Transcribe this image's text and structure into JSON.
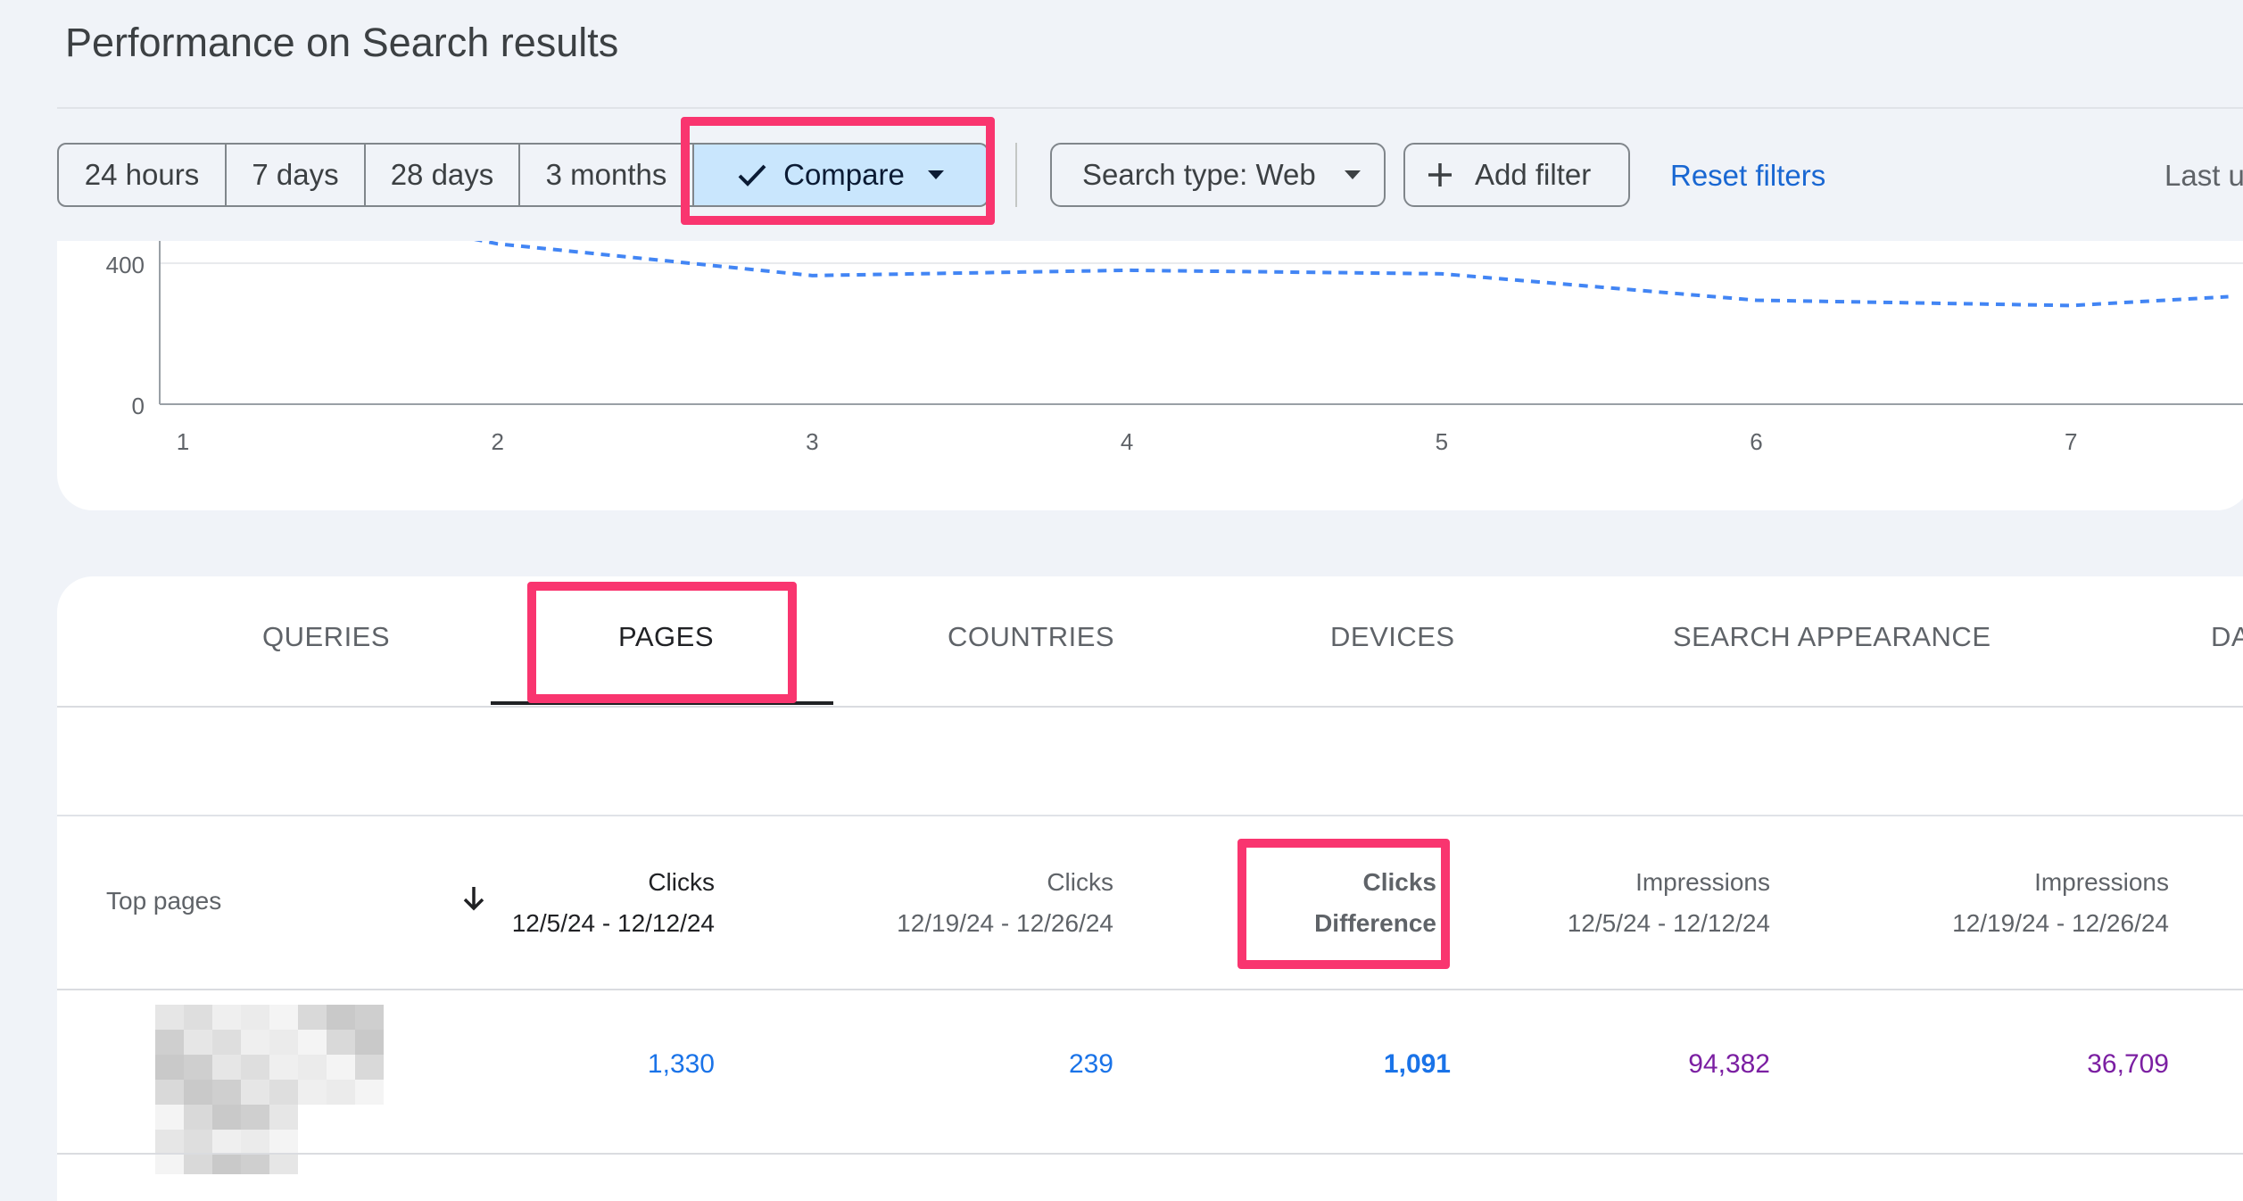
{
  "header": {
    "title": "Performance on Search results"
  },
  "toolbar": {
    "ranges": [
      "24 hours",
      "7 days",
      "28 days",
      "3 months"
    ],
    "compare_label": "Compare",
    "search_type_label": "Search type: Web",
    "add_filter_label": "Add filter",
    "reset_filters_label": "Reset filters",
    "last_updated_partial": "Last u"
  },
  "chart_data": {
    "type": "line",
    "x": [
      1,
      2,
      3,
      4,
      5,
      6,
      7,
      7.5
    ],
    "y_ticks": [
      "0",
      "400"
    ],
    "x_ticks": [
      "1",
      "2",
      "3",
      "4",
      "5",
      "6",
      "7"
    ],
    "series": [
      {
        "values": [
          null,
          455,
          365,
          380,
          370,
          295,
          280,
          305
        ],
        "style": "dashed",
        "color": "#4285f4"
      }
    ]
  },
  "tabs": [
    "QUERIES",
    "PAGES",
    "COUNTRIES",
    "DEVICES",
    "SEARCH APPEARANCE",
    "DA"
  ],
  "table": {
    "first_column_label": "Top pages",
    "sort_icon": "arrow-down-icon",
    "columns": [
      {
        "metric": "Clicks",
        "period": "12/5/24 - 12/12/24"
      },
      {
        "metric": "Clicks",
        "period": "12/19/24 - 12/26/24"
      },
      {
        "metric": "Clicks",
        "period": "Difference"
      },
      {
        "metric": "Impressions",
        "period": "12/5/24 - 12/12/24"
      },
      {
        "metric": "Impressions",
        "period": "12/19/24 - 12/26/24"
      }
    ],
    "rows": [
      {
        "values": [
          "1,330",
          "239",
          "1,091",
          "94,382",
          "36,709"
        ]
      }
    ]
  }
}
